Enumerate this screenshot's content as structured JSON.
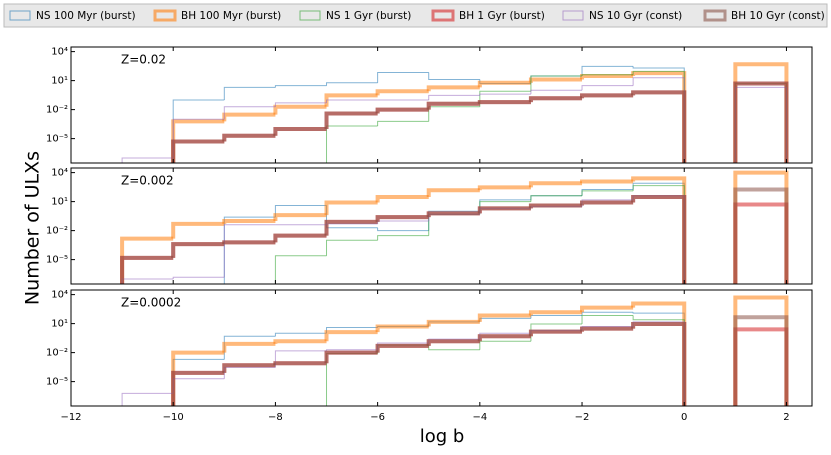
{
  "chart_data": [
    {
      "type": "histogram",
      "annotation": "Z=0.02",
      "ylabel": "Number of ULXs",
      "log_y": true,
      "bins": [
        -11,
        -10,
        -9,
        -8,
        -7,
        -6,
        -5,
        -4,
        -3,
        -2,
        -1,
        0,
        1,
        2
      ],
      "xlim": [
        -12,
        2.5
      ],
      "ylim": [
        3e-08,
        30000
      ],
      "yticks": [
        {
          "value": 10000,
          "label": "10⁴"
        },
        {
          "value": 10,
          "label": "10¹"
        },
        {
          "value": 0.01,
          "label": "10⁻²"
        },
        {
          "value": 1e-05,
          "label": "10⁻⁵"
        }
      ],
      "series": [
        {
          "name": "NS 100 Myr (burst)",
          "color": "#1f77b4",
          "width": 1,
          "values": [
            null,
            0.1,
            2,
            3,
            6,
            70,
            13,
            5,
            30,
            300,
            200,
            null,
            null
          ]
        },
        {
          "name": "BH 100 Myr (burst)",
          "color": "#ff7f0e",
          "width": 4,
          "values": [
            null,
            0.0006,
            0.003,
            0.02,
            0.3,
            0.8,
            2,
            6,
            13,
            30,
            60,
            null,
            500
          ]
        },
        {
          "name": "NS 1 Gyr (burst)",
          "color": "#2ca02c",
          "width": 1,
          "values": [
            null,
            null,
            null,
            null,
            0.0002,
            0.0006,
            0.02,
            0.8,
            30,
            40,
            90,
            null,
            5
          ]
        },
        {
          "name": "BH 1 Gyr (burst)",
          "color": "#d62728",
          "width": 4,
          "values": [
            null,
            5e-06,
            2e-05,
            0.0001,
            0.004,
            0.01,
            0.04,
            0.06,
            0.15,
            0.3,
            0.6,
            null,
            5
          ]
        },
        {
          "name": "NS 10 Gyr (const)",
          "color": "#9467bd",
          "width": 1,
          "values": [
            1e-07,
            0.001,
            0.02,
            0.05,
            0.1,
            0.1,
            0.3,
            0.4,
            1,
            3,
            20,
            null,
            2
          ]
        },
        {
          "name": "BH 10 Gyr (const)",
          "color": "#8c564b",
          "width": 4,
          "values": [
            null,
            5e-06,
            2e-05,
            0.0001,
            0.004,
            0.01,
            0.04,
            0.06,
            0.15,
            0.3,
            0.6,
            null,
            5
          ]
        }
      ]
    },
    {
      "type": "histogram",
      "annotation": "Z=0.002",
      "log_y": true,
      "bins": [
        -11,
        -10,
        -9,
        -8,
        -7,
        -6,
        -5,
        -4,
        -3,
        -2,
        -1,
        0,
        1,
        2
      ],
      "xlim": [
        -12,
        2.5
      ],
      "ylim": [
        3e-08,
        30000
      ],
      "yticks": [
        {
          "value": 10000,
          "label": "10⁴"
        },
        {
          "value": 10,
          "label": "10¹"
        },
        {
          "value": 0.01,
          "label": "10⁻²"
        },
        {
          "value": 1e-05,
          "label": "10⁻⁵"
        }
      ],
      "series": [
        {
          "color": "#1f77b4",
          "width": 1,
          "values": [
            null,
            null,
            0.25,
            4,
            0.02,
            0.01,
            1,
            15,
            40,
            180,
            800,
            null,
            null
          ]
        },
        {
          "color": "#ff7f0e",
          "width": 4,
          "values": [
            0.0015,
            0.05,
            0.1,
            0.4,
            8,
            30,
            150,
            300,
            800,
            1200,
            2500,
            null,
            10000
          ]
        },
        {
          "color": "#2ca02c",
          "width": 1,
          "values": [
            null,
            null,
            null,
            2.5e-05,
            0.001,
            0.003,
            0.5,
            10,
            40,
            130,
            450,
            null,
            null
          ]
        },
        {
          "color": "#d62728",
          "width": 4,
          "values": [
            1.5e-05,
            0.0004,
            0.0006,
            0.003,
            0.08,
            0.25,
            0.6,
            2,
            4,
            8,
            30,
            null,
            5
          ]
        },
        {
          "color": "#9467bd",
          "width": 1,
          "values": [
            1e-07,
            1.5e-07,
            0.04,
            0.04,
            0.05,
            0.1,
            0.5,
            2,
            3,
            15,
            40,
            null,
            null
          ]
        },
        {
          "color": "#8c564b",
          "width": 4,
          "values": [
            1.5e-05,
            0.0004,
            0.0006,
            0.003,
            0.08,
            0.25,
            0.6,
            2,
            4,
            8,
            30,
            null,
            180
          ]
        }
      ]
    },
    {
      "type": "histogram",
      "annotation": "Z=0.0002",
      "xlabel": "log b",
      "log_y": true,
      "bins": [
        -11,
        -10,
        -9,
        -8,
        -7,
        -6,
        -5,
        -4,
        -3,
        -2,
        -1,
        0,
        1,
        2
      ],
      "xlim": [
        -12,
        2.5
      ],
      "ylim": [
        3e-08,
        30000
      ],
      "xticks": [
        {
          "value": -12,
          "label": "−12"
        },
        {
          "value": -10,
          "label": "−10"
        },
        {
          "value": -8,
          "label": "−8"
        },
        {
          "value": -6,
          "label": "−6"
        },
        {
          "value": -4,
          "label": "−4"
        },
        {
          "value": -2,
          "label": "−2"
        },
        0,
        2
      ],
      "yticks": [
        {
          "value": 10000,
          "label": "10⁴"
        },
        {
          "value": 10,
          "label": "10¹"
        },
        {
          "value": 0.01,
          "label": "10⁻²"
        },
        {
          "value": 1e-05,
          "label": "10⁻⁵"
        }
      ],
      "series": [
        {
          "color": "#1f77b4",
          "width": 1,
          "values": [
            null,
            0.002,
            0.5,
            1,
            4,
            5,
            15,
            35,
            70,
            150,
            120,
            null,
            null
          ]
        },
        {
          "color": "#ff7f0e",
          "width": 4,
          "values": [
            null,
            0.01,
            0.08,
            0.15,
            1.3,
            5,
            15,
            70,
            150,
            450,
            1200,
            null,
            5000
          ]
        },
        {
          "color": "#2ca02c",
          "width": 1,
          "values": [
            null,
            null,
            null,
            null,
            0.008,
            0.06,
            0.02,
            0.15,
            9,
            70,
            25,
            null,
            null
          ]
        },
        {
          "color": "#d62728",
          "width": 4,
          "values": [
            null,
            8e-05,
            0.0005,
            0.0008,
            0.01,
            0.05,
            0.15,
            0.5,
            1.5,
            3,
            9,
            null,
            2.5
          ]
        },
        {
          "color": "#9467bd",
          "width": 1,
          "values": [
            6e-07,
            2e-05,
            0.0003,
            0.015,
            0.02,
            0.1,
            0.25,
            1,
            2,
            5,
            15,
            null,
            null
          ]
        },
        {
          "color": "#8c564b",
          "width": 4,
          "values": [
            null,
            8e-05,
            0.0005,
            0.0008,
            0.01,
            0.05,
            0.15,
            0.5,
            1.5,
            3,
            9,
            null,
            45
          ]
        }
      ]
    }
  ]
}
